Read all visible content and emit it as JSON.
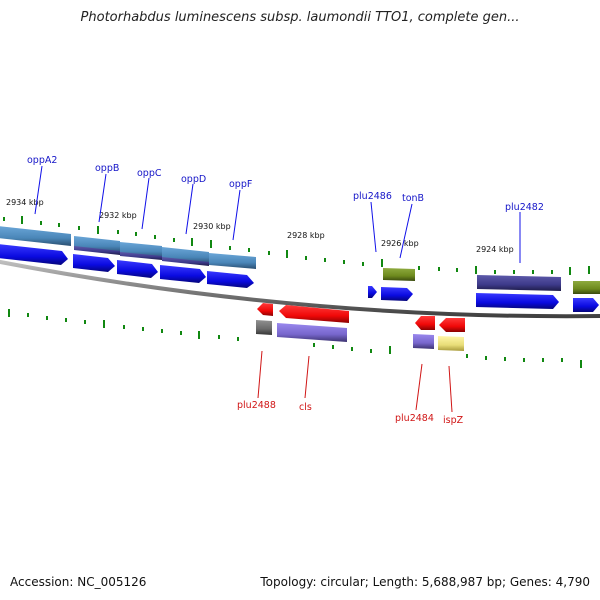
{
  "title": "Photorhabdus luminescens subsp. laumondii TTO1, complete gen...",
  "footer": {
    "accession": "Accession: NC_005126",
    "summary": "Topology: circular; Length: 5,688,987 bp; Genes: 4,790"
  },
  "ruler_labels": [
    "2934 kbp",
    "2932 kbp",
    "2930 kbp",
    "2928 kbp",
    "2926 kbp",
    "2924 kbp"
  ],
  "top_gene_labels": [
    "oppA2",
    "oppB",
    "oppC",
    "oppD",
    "oppF",
    "plu2486",
    "tonB",
    "plu2482"
  ],
  "bottom_gene_labels": [
    "plu2488",
    "cls",
    "plu2484",
    "ispZ"
  ],
  "colors": {
    "forward_gene": "#1010e8",
    "reverse_gene": "#f00808",
    "forward_label": "#1515c8",
    "reverse_label": "#d01515",
    "backbone": "#808080",
    "tick": "#118811",
    "cog_steelblue": "#4a86b8",
    "cog_darkslate": "#3d3a8a",
    "cog_olive": "#6e8a1e",
    "cog_slateblue": "#7766cc",
    "cog_gray": "#6a6a6a",
    "cog_khaki": "#e8dd78"
  }
}
